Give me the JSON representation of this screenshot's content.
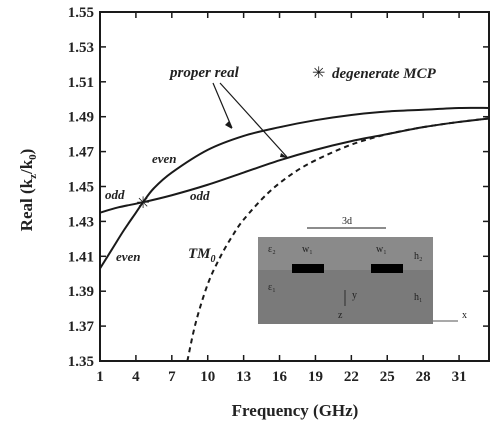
{
  "chart_data": {
    "type": "line",
    "title": "",
    "xlabel": "Frequency (GHz)",
    "ylabel": "Real (k₂/k₀)",
    "ylabel_main": "Real (k",
    "ylabel_sub_z": "z",
    "ylabel_mid": "/k",
    "ylabel_sub_0": "0",
    "ylabel_close": ")",
    "xlim": [
      1,
      33.5
    ],
    "ylim": [
      1.35,
      1.55
    ],
    "xticks": [
      1,
      4,
      7,
      10,
      13,
      16,
      19,
      22,
      25,
      28,
      31
    ],
    "yticks": [
      1.35,
      1.37,
      1.39,
      1.41,
      1.43,
      1.45,
      1.47,
      1.49,
      1.51,
      1.53,
      1.55
    ],
    "ytick_labels": [
      "1.35",
      "1.37",
      "1.39",
      "1.41",
      "1.43",
      "1.45",
      "1.47",
      "1.49",
      "1.51",
      "1.53",
      "1.55"
    ],
    "grid": false,
    "series": [
      {
        "name": "even",
        "style": "solid",
        "x": [
          1,
          2,
          3,
          4,
          4.6,
          5.5,
          7,
          10,
          13,
          16,
          19,
          22,
          25,
          28,
          31,
          33.5
        ],
        "y": [
          1.403,
          1.414,
          1.425,
          1.435,
          1.441,
          1.449,
          1.458,
          1.471,
          1.479,
          1.484,
          1.488,
          1.491,
          1.493,
          1.494,
          1.495,
          1.495
        ]
      },
      {
        "name": "odd",
        "style": "solid",
        "x": [
          1,
          2.5,
          4.6,
          7,
          10,
          13,
          16,
          19,
          22,
          25,
          28,
          31,
          33.5
        ],
        "y": [
          1.435,
          1.438,
          1.441,
          1.445,
          1.451,
          1.458,
          1.465,
          1.471,
          1.476,
          1.48,
          1.484,
          1.487,
          1.489
        ]
      },
      {
        "name": "TM0",
        "style": "dashed",
        "x": [
          8.3,
          9,
          10,
          11,
          12,
          13,
          15,
          17,
          19,
          22,
          25,
          28,
          31,
          33.5
        ],
        "y": [
          1.35,
          1.372,
          1.394,
          1.409,
          1.421,
          1.431,
          1.446,
          1.457,
          1.465,
          1.474,
          1.48,
          1.484,
          1.487,
          1.489
        ]
      }
    ],
    "marker": {
      "label": "degenerate MCP",
      "x": 4.6,
      "y": 1.441
    },
    "annotations": {
      "proper_real": "proper real",
      "even_upper": "even",
      "even_lower": "even",
      "odd_left": "odd",
      "odd_right": "odd",
      "tm_main": "TM",
      "tm_sub": "0",
      "legend_symbol": "✳"
    },
    "inset": {
      "dim_label": "3d",
      "eps2": "ε₂",
      "eps1": "ε₁",
      "w_left": "w₁",
      "w_right": "w₁",
      "h2": "h₂",
      "h1": "h₁",
      "y_axis": "y",
      "z_axis": "z",
      "x_axis": "x"
    },
    "colors": {
      "line": "#1a1a1a",
      "inset_top": "#8a8a8a",
      "inset_bottom": "#7a7a7a",
      "strip": "#000000"
    }
  }
}
